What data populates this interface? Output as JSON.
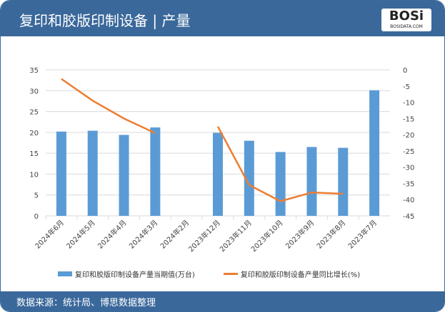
{
  "header": {
    "title": "复印和胶版印制设备 | 产量",
    "logo_text": "BOSi",
    "logo_sub": "BOSIDATA.COM"
  },
  "footer": {
    "source": "数据来源：统计局、博思数据整理"
  },
  "colors": {
    "bar": "#5b9bd5",
    "line": "#ed7d31",
    "header": "#3a689b"
  },
  "chart_data": {
    "type": "bar+line",
    "categories": [
      "2024年6月",
      "2024年5月",
      "2024年4月",
      "2024年3月",
      "2024年2月",
      "2023年12月",
      "2023年11月",
      "2023年10月",
      "2023年9月",
      "2023年8月",
      "2023年7月"
    ],
    "series": [
      {
        "name": "复印和胶版印制设备产量当期值(万台)",
        "type": "bar",
        "axis": "left",
        "values": [
          20.2,
          20.4,
          19.4,
          21.2,
          null,
          19.9,
          18.0,
          15.3,
          16.5,
          16.3,
          30.1
        ]
      },
      {
        "name": "复印和胶版印制设备产量同比增长(%)",
        "type": "line",
        "axis": "right",
        "values": [
          -2.8,
          -9.5,
          -15,
          -19.5,
          null,
          -17.5,
          -35.5,
          -40.5,
          -37.8,
          -38.2,
          null
        ]
      }
    ],
    "ylim_left": [
      0,
      35
    ],
    "yticks_left": [
      0,
      5,
      10,
      15,
      20,
      25,
      30,
      35
    ],
    "ylim_right": [
      -45,
      0
    ],
    "yticks_right": [
      0,
      -5,
      -10,
      -15,
      -20,
      -25,
      -30,
      -35,
      -40,
      -45
    ],
    "grid": true,
    "legend": "bottom"
  }
}
